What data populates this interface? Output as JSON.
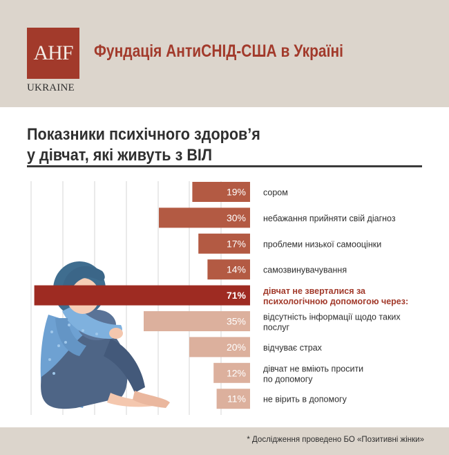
{
  "header": {
    "logo_text": "AHF",
    "logo_sub": "UKRAINE",
    "org_name": "Фундація АнтиСНІД-США в Україні"
  },
  "colors": {
    "header_bg": "#dcd5cc",
    "accent": "#a23a2b",
    "bar_dark": "#b35a43",
    "bar_highlight": "#9e2b22",
    "bar_light": "#dcb09d"
  },
  "footer": {
    "note": "* Дослідження проведено БО «Позитивні жінки»"
  },
  "chart_data": {
    "type": "bar",
    "orientation": "horizontal",
    "title_lines": [
      "Показники психічного здоров’я",
      "у дівчат, які живуть з ВІЛ"
    ],
    "xlim": [
      0,
      100
    ],
    "grid": true,
    "bars": [
      {
        "label": "сором",
        "value": 19,
        "display": "19%",
        "style": "dark"
      },
      {
        "label": "небажання прийняти свій діагноз",
        "value": 30,
        "display": "30%",
        "style": "dark"
      },
      {
        "label": "проблеми низької самооцінки",
        "value": 17,
        "display": "17%",
        "style": "dark"
      },
      {
        "label": "самозвинувачування",
        "value": 14,
        "display": "14%",
        "style": "dark"
      },
      {
        "label": "дівчат не зверталися за психологічною допомогою через:",
        "label_lines": [
          "дівчат не зверталися за",
          "психологічною допомогою через:"
        ],
        "value": 71,
        "display": "71%",
        "style": "highlight"
      },
      {
        "label": "відсутність інформації щодо таких послуг",
        "label_lines": [
          "відсутність інформації щодо таких",
          "послуг"
        ],
        "value": 35,
        "display": "35%",
        "style": "light"
      },
      {
        "label": "відчуває страх",
        "value": 20,
        "display": "20%",
        "style": "light"
      },
      {
        "label": "дівчат не вміють просити по допомогу",
        "label_lines": [
          "дівчат не вміють просити",
          "по допомогу"
        ],
        "value": 12,
        "display": "12%",
        "style": "light"
      },
      {
        "label": "не вірить в допомогу",
        "value": 11,
        "display": "11%",
        "style": "light"
      }
    ]
  }
}
